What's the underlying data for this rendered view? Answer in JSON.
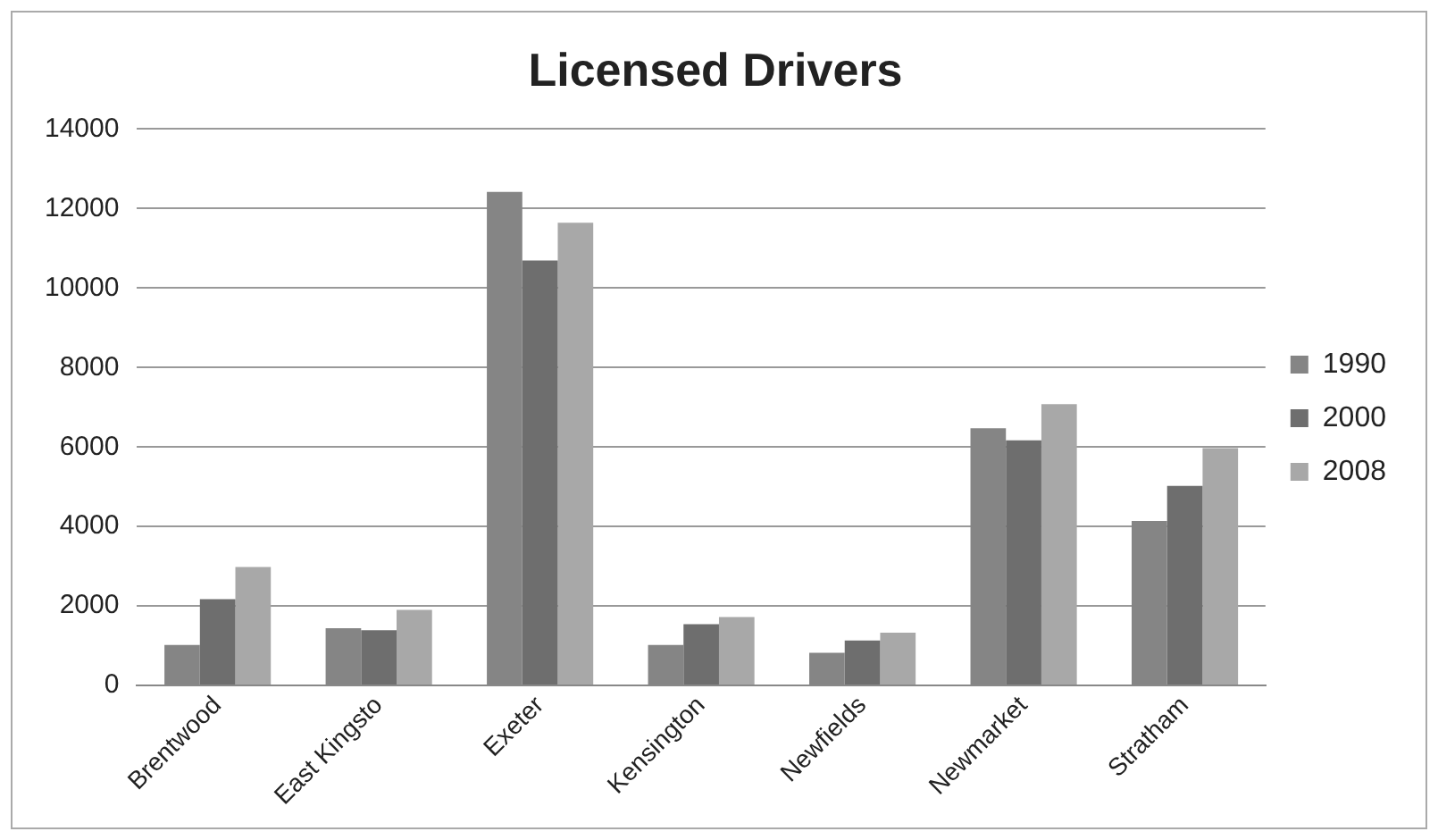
{
  "chart_data": {
    "type": "bar",
    "title": "Licensed Drivers",
    "categories": [
      "Brentwood",
      "East Kingsto",
      "Exeter",
      "Kensington",
      "Newfields",
      "Newmarket",
      "Stratham"
    ],
    "series": [
      {
        "name": "1990",
        "color": "#858585",
        "values": [
          1020,
          1440,
          12420,
          1020,
          820,
          6470,
          4140
        ]
      },
      {
        "name": "2000",
        "color": "#6e6e6e",
        "values": [
          2170,
          1390,
          10690,
          1540,
          1130,
          6170,
          5020
        ]
      },
      {
        "name": "2008",
        "color": "#a8a8a8",
        "values": [
          2980,
          1900,
          11640,
          1720,
          1330,
          7080,
          5970
        ]
      }
    ],
    "ylim": [
      0,
      14000
    ],
    "yticks": [
      0,
      2000,
      4000,
      6000,
      8000,
      10000,
      12000,
      14000
    ],
    "grid": "y",
    "legend": "right"
  }
}
